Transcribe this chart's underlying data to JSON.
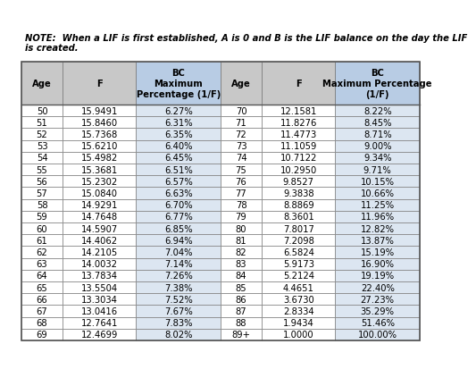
{
  "note_line1": "NOTE:  When a LIF is first established, A is 0 and B is the LIF balance on the day the LIF",
  "note_line2": "is created.",
  "headers_left": [
    "Age",
    "F",
    "BC\nMaximum\nPercentage (1/F)"
  ],
  "headers_right": [
    "Age",
    "F",
    "BC\nMaximum Percentage\n(1/F)"
  ],
  "left_data": [
    [
      "50",
      "15.9491",
      "6.27%"
    ],
    [
      "51",
      "15.8460",
      "6.31%"
    ],
    [
      "52",
      "15.7368",
      "6.35%"
    ],
    [
      "53",
      "15.6210",
      "6.40%"
    ],
    [
      "54",
      "15.4982",
      "6.45%"
    ],
    [
      "55",
      "15.3681",
      "6.51%"
    ],
    [
      "56",
      "15.2302",
      "6.57%"
    ],
    [
      "57",
      "15.0840",
      "6.63%"
    ],
    [
      "58",
      "14.9291",
      "6.70%"
    ],
    [
      "59",
      "14.7648",
      "6.77%"
    ],
    [
      "60",
      "14.5907",
      "6.85%"
    ],
    [
      "61",
      "14.4062",
      "6.94%"
    ],
    [
      "62",
      "14.2105",
      "7.04%"
    ],
    [
      "63",
      "14.0032",
      "7.14%"
    ],
    [
      "64",
      "13.7834",
      "7.26%"
    ],
    [
      "65",
      "13.5504",
      "7.38%"
    ],
    [
      "66",
      "13.3034",
      "7.52%"
    ],
    [
      "67",
      "13.0416",
      "7.67%"
    ],
    [
      "68",
      "12.7641",
      "7.83%"
    ],
    [
      "69",
      "12.4699",
      "8.02%"
    ]
  ],
  "right_data": [
    [
      "70",
      "12.1581",
      "8.22%"
    ],
    [
      "71",
      "11.8276",
      "8.45%"
    ],
    [
      "72",
      "11.4773",
      "8.71%"
    ],
    [
      "73",
      "11.1059",
      "9.00%"
    ],
    [
      "74",
      "10.7122",
      "9.34%"
    ],
    [
      "75",
      "10.2950",
      "9.71%"
    ],
    [
      "76",
      "9.8527",
      "10.15%"
    ],
    [
      "77",
      "9.3838",
      "10.66%"
    ],
    [
      "78",
      "8.8869",
      "11.25%"
    ],
    [
      "79",
      "8.3601",
      "11.96%"
    ],
    [
      "80",
      "7.8017",
      "12.82%"
    ],
    [
      "81",
      "7.2098",
      "13.87%"
    ],
    [
      "82",
      "6.5824",
      "15.19%"
    ],
    [
      "83",
      "5.9173",
      "16.90%"
    ],
    [
      "84",
      "5.2124",
      "19.19%"
    ],
    [
      "85",
      "4.4651",
      "22.40%"
    ],
    [
      "86",
      "3.6730",
      "27.23%"
    ],
    [
      "87",
      "2.8334",
      "35.29%"
    ],
    [
      "88",
      "1.9434",
      "51.46%"
    ],
    [
      "89+",
      "1.0000",
      "100.00%"
    ]
  ],
  "header_blue": "#b8cce4",
  "header_gray": "#c8c8c8",
  "row_blue": "#dce6f1",
  "row_white": "#ffffff",
  "border_color": "#7f7f7f",
  "text_color": "#000000",
  "fig_bg": "#ffffff",
  "note_fontsize": 7.2,
  "header_fontsize": 7.2,
  "cell_fontsize": 7.2
}
